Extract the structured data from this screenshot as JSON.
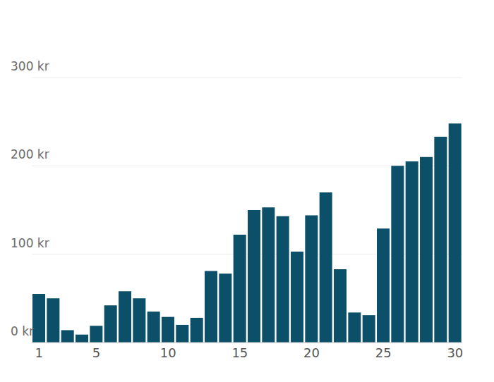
{
  "chart_data": {
    "type": "bar",
    "categories": [
      "1",
      null,
      null,
      null,
      "5",
      null,
      null,
      null,
      null,
      "10",
      null,
      null,
      null,
      null,
      "15",
      null,
      null,
      null,
      null,
      "20",
      null,
      null,
      null,
      null,
      "25",
      null,
      null,
      null,
      null,
      "30"
    ],
    "values": [
      55,
      50,
      14,
      9,
      19,
      42,
      58,
      50,
      35,
      29,
      20,
      28,
      81,
      78,
      122,
      150,
      153,
      143,
      103,
      144,
      170,
      83,
      34,
      31,
      129,
      200,
      205,
      210,
      233,
      248
    ],
    "color": "#0b5068",
    "ylim": [
      0,
      300
    ],
    "yticks": [
      {
        "value": 0,
        "label": "0 kr"
      },
      {
        "value": 100,
        "label": "100 kr"
      },
      {
        "value": 200,
        "label": "200 kr"
      },
      {
        "value": 300,
        "label": "300 kr"
      }
    ],
    "grid": true
  }
}
